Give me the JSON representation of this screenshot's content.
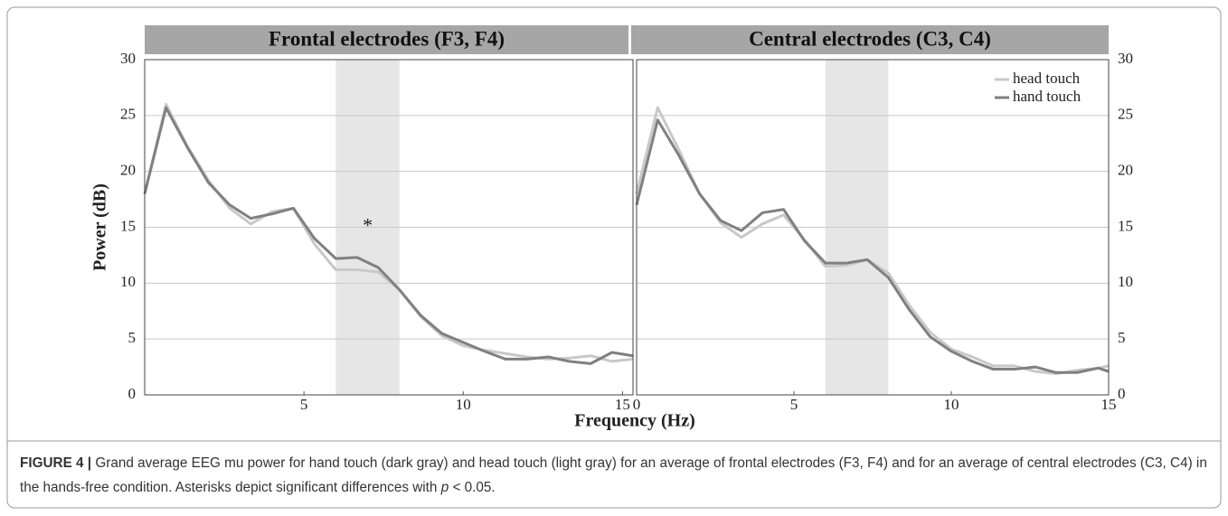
{
  "chart_data": [
    {
      "type": "line",
      "title": "Frontal electrodes (F3, F4)",
      "ylabel": "Power (dB)",
      "xlabel": "Frequency (Hz)",
      "x": [
        0,
        0.67,
        1.33,
        2,
        2.67,
        3.33,
        4,
        4.67,
        5.33,
        6,
        6.67,
        7.33,
        8,
        8.67,
        9.33,
        10,
        10.67,
        11.33,
        12,
        12.67,
        13.33,
        14,
        14.67,
        15.33
      ],
      "series": [
        {
          "color": "#c8c8c8",
          "values": [
            18,
            26,
            22.3,
            19.2,
            16.7,
            15.3,
            16.4,
            16.7,
            13.5,
            11.2,
            11.2,
            11.0,
            9.4,
            7.0,
            5.3,
            4.4,
            4.0,
            3.7,
            3.4,
            3.2,
            3.3,
            3.5,
            3.0,
            3.2
          ]
        },
        {
          "color": "#808080",
          "values": [
            18,
            25.7,
            22.2,
            19,
            17,
            15.8,
            16.2,
            16.7,
            14,
            12.2,
            12.3,
            11.4,
            9.4,
            7.1,
            5.5,
            4.7,
            3.9,
            3.2,
            3.2,
            3.4,
            3.0,
            2.8,
            3.8,
            3.5
          ]
        }
      ],
      "xlim": [
        0,
        15.33
      ],
      "xticks": [
        5,
        10,
        15
      ],
      "ylim": [
        0,
        30
      ],
      "yticks": [
        0,
        5,
        10,
        15,
        20,
        25,
        30
      ],
      "yaxis_side": "left",
      "grid": true,
      "highlight": [
        6,
        8
      ],
      "annotations": [
        {
          "text": "*",
          "x": 7,
          "y": 15
        }
      ]
    },
    {
      "type": "line",
      "title": "Central electrodes (C3, C4)",
      "x": [
        0,
        0.67,
        1.33,
        2,
        2.67,
        3.33,
        4,
        4.67,
        5.33,
        6,
        6.67,
        7.33,
        8,
        8.67,
        9.33,
        10,
        10.67,
        11.33,
        12,
        12.67,
        13.33,
        14,
        14.67,
        15
      ],
      "series": [
        {
          "name": "head touch",
          "color": "#c8c8c8",
          "values": [
            18,
            25.7,
            22,
            18,
            15.4,
            14.1,
            15.3,
            16.1,
            13.9,
            11.5,
            11.6,
            12.1,
            10.9,
            8.0,
            5.6,
            4.1,
            3.4,
            2.6,
            2.6,
            2.1,
            1.9,
            2.2,
            2.4,
            2.6
          ]
        },
        {
          "name": "hand touch",
          "color": "#808080",
          "values": [
            17,
            24.6,
            21.5,
            18,
            15.6,
            14.7,
            16.3,
            16.6,
            13.8,
            11.8,
            11.8,
            12.1,
            10.5,
            7.6,
            5.2,
            3.9,
            3.0,
            2.3,
            2.3,
            2.5,
            2.0,
            2.0,
            2.4,
            2.1
          ]
        }
      ],
      "xlim": [
        0,
        15
      ],
      "xticks": [
        0,
        5,
        10,
        15
      ],
      "ylim": [
        0,
        30
      ],
      "yticks": [
        0,
        5,
        10,
        15,
        20,
        25,
        30
      ],
      "yaxis_side": "right",
      "grid": true,
      "highlight": [
        6,
        8
      ],
      "legend": "upper right"
    }
  ],
  "caption": {
    "label": "FIGURE 4 |",
    "text_before": "Grand average EEG mu power for hand touch (dark gray) and head touch (light gray) for an average of frontal electrodes (F3, F4) and for an average of central electrodes (C3, C4) in the hands-free condition. Asterisks depict significant differences with",
    "italic": "p",
    "text_after": "< 0.05."
  }
}
